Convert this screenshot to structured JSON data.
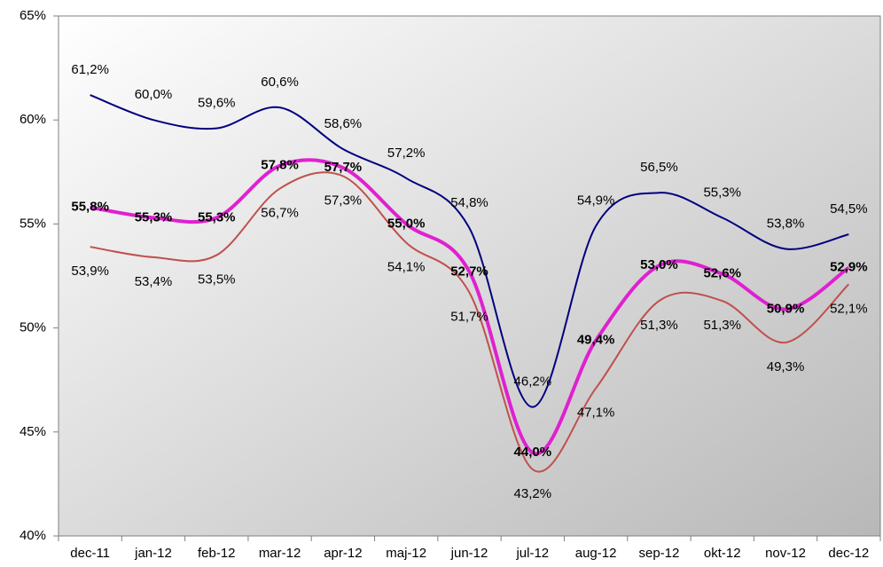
{
  "chart_data": {
    "type": "line",
    "categories": [
      "dec-11",
      "jan-12",
      "feb-12",
      "mar-12",
      "apr-12",
      "maj-12",
      "jun-12",
      "jul-12",
      "aug-12",
      "sep-12",
      "okt-12",
      "nov-12",
      "dec-12"
    ],
    "series": [
      {
        "color": "#000080",
        "bold": false,
        "label_position": "above",
        "values": [
          61.2,
          60.0,
          59.6,
          60.6,
          58.6,
          57.2,
          54.8,
          46.2,
          54.9,
          56.5,
          55.3,
          53.8,
          54.5
        ],
        "value_labels": [
          "61,2%",
          "60,0%",
          "59,6%",
          "60,6%",
          "58,6%",
          "57,2%",
          "54,8%",
          "46,2%",
          "54,9%",
          "56,5%",
          "55,3%",
          "53,8%",
          "54,5%"
        ]
      },
      {
        "color": "#c0504d",
        "bold": false,
        "label_position": "below",
        "values": [
          53.9,
          53.4,
          53.5,
          56.7,
          57.3,
          54.1,
          51.7,
          43.2,
          47.1,
          51.3,
          51.3,
          49.3,
          52.1
        ],
        "value_labels": [
          "53,9%",
          "53,4%",
          "53,5%",
          "56,7%",
          "57,3%",
          "54,1%",
          "51,7%",
          "43,2%",
          "47,1%",
          "51,3%",
          "51,3%",
          "49,3%",
          "52,1%"
        ]
      },
      {
        "color": "#e020d0",
        "bold": true,
        "label_position": "center",
        "values": [
          55.8,
          55.3,
          55.3,
          57.8,
          57.7,
          55.0,
          52.7,
          44.0,
          49.4,
          53.0,
          52.6,
          50.9,
          52.9
        ],
        "value_labels": [
          "55,8%",
          "55,3%",
          "55,3%",
          "57,8%",
          "57,7%",
          "55,0%",
          "52,7%",
          "44,0%",
          "49,4%",
          "53,0%",
          "52,6%",
          "50,9%",
          "52,9%"
        ]
      }
    ],
    "ylim": [
      40,
      65
    ],
    "yticks": [
      {
        "value": 40,
        "label": "40%"
      },
      {
        "value": 45,
        "label": "45%"
      },
      {
        "value": 50,
        "label": "50%"
      },
      {
        "value": 55,
        "label": "55%"
      },
      {
        "value": 60,
        "label": "60%"
      },
      {
        "value": 65,
        "label": "65%"
      }
    ],
    "grid": false
  }
}
